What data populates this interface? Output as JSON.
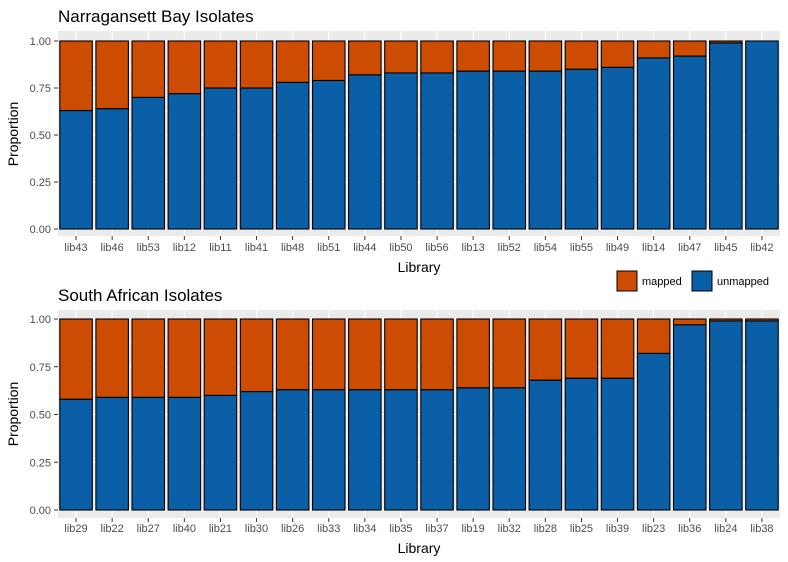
{
  "colors": {
    "mapped": "#cc4c02",
    "unmapped": "#0a5fa6",
    "panel_bg": "#ebebeb",
    "grid": "#ffffff"
  },
  "legend": {
    "position": "right, between panels",
    "items": [
      {
        "key": "mapped",
        "label": "mapped"
      },
      {
        "key": "unmapped",
        "label": "unmapped"
      }
    ]
  },
  "chart_data": [
    {
      "type": "bar",
      "stacked": true,
      "title": "Narragansett Bay Isolates",
      "xlabel": "Library",
      "ylabel": "Proportion",
      "ylim": [
        0,
        1
      ],
      "yticks": [
        "0.00",
        "0.25",
        "0.50",
        "0.75",
        "1.00"
      ],
      "grid": true,
      "categories": [
        "lib43",
        "lib46",
        "lib53",
        "lib12",
        "lib11",
        "lib41",
        "lib48",
        "lib51",
        "lib44",
        "lib50",
        "lib56",
        "lib13",
        "lib52",
        "lib54",
        "lib55",
        "lib49",
        "lib14",
        "lib47",
        "lib45",
        "lib42"
      ],
      "series": [
        {
          "name": "unmapped",
          "values": [
            0.63,
            0.64,
            0.7,
            0.72,
            0.75,
            0.75,
            0.78,
            0.79,
            0.82,
            0.83,
            0.83,
            0.84,
            0.84,
            0.84,
            0.85,
            0.86,
            0.91,
            0.92,
            0.99,
            1.0
          ]
        },
        {
          "name": "mapped",
          "values": [
            0.37,
            0.36,
            0.3,
            0.28,
            0.25,
            0.25,
            0.22,
            0.21,
            0.18,
            0.17,
            0.17,
            0.16,
            0.16,
            0.16,
            0.15,
            0.14,
            0.09,
            0.08,
            0.01,
            0.0
          ]
        }
      ]
    },
    {
      "type": "bar",
      "stacked": true,
      "title": "South African Isolates",
      "xlabel": "Library",
      "ylabel": "Proportion",
      "ylim": [
        0,
        1
      ],
      "yticks": [
        "0.00",
        "0.25",
        "0.50",
        "0.75",
        "1.00"
      ],
      "grid": true,
      "categories": [
        "lib29",
        "lib22",
        "lib27",
        "lib40",
        "lib21",
        "lib30",
        "lib26",
        "lib33",
        "lib34",
        "lib35",
        "lib37",
        "lib19",
        "lib32",
        "lib28",
        "lib25",
        "lib39",
        "lib23",
        "lib36",
        "lib24",
        "lib38"
      ],
      "series": [
        {
          "name": "unmapped",
          "values": [
            0.58,
            0.59,
            0.59,
            0.59,
            0.6,
            0.62,
            0.63,
            0.63,
            0.63,
            0.63,
            0.63,
            0.64,
            0.64,
            0.68,
            0.69,
            0.69,
            0.82,
            0.97,
            0.99,
            0.99
          ]
        },
        {
          "name": "mapped",
          "values": [
            0.42,
            0.41,
            0.41,
            0.41,
            0.4,
            0.38,
            0.37,
            0.37,
            0.37,
            0.37,
            0.37,
            0.36,
            0.36,
            0.32,
            0.31,
            0.31,
            0.18,
            0.03,
            0.01,
            0.01
          ]
        }
      ]
    }
  ]
}
